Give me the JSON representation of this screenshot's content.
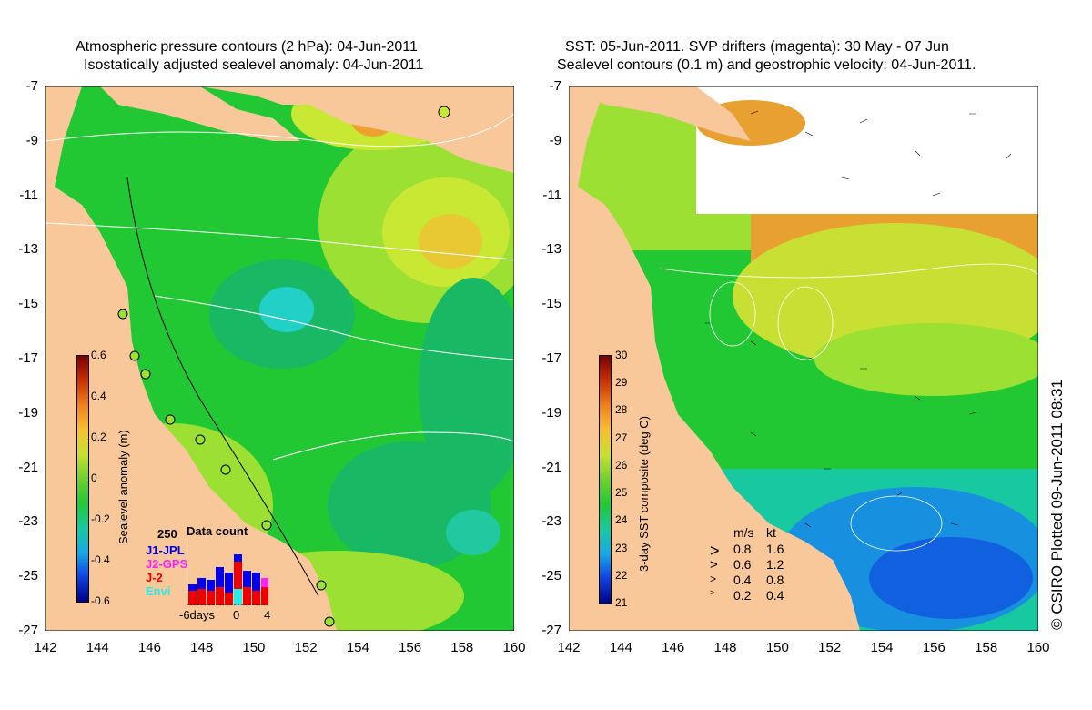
{
  "chart_data": [
    {
      "type": "heatmap",
      "title": "Atmospheric pressure contours (2 hPa): 04-Jun-2011",
      "subtitle": "Isostatically adjusted sealevel anomaly: 04-Jun-2011",
      "x_ticks": [
        "142",
        "144",
        "146",
        "148",
        "150",
        "152",
        "154",
        "156",
        "158",
        "160"
      ],
      "y_ticks": [
        "-7",
        "-9",
        "-11",
        "-13",
        "-15",
        "-17",
        "-19",
        "-21",
        "-23",
        "-25",
        "-27"
      ],
      "xlim": [
        142,
        160
      ],
      "ylim": [
        -27,
        -7
      ],
      "colorbar": {
        "label": "Sealevel anomaly (m)",
        "ticks": [
          "0.6",
          "0.4",
          "0.2",
          "0",
          "-0.2",
          "-0.4",
          "-0.6"
        ],
        "range": [
          -0.6,
          0.6
        ]
      },
      "data_count": {
        "title": "Data count",
        "max_label": "250",
        "x_ticks": [
          "-6days",
          "0",
          "4"
        ],
        "series": [
          {
            "name": "J1-JPL",
            "color": "#0000ee"
          },
          {
            "name": "J2-GPS",
            "color": "#ff22ff"
          },
          {
            "name": "J-2",
            "color": "#ee0000"
          },
          {
            "name": "Envi",
            "color": "#22eeee"
          }
        ]
      }
    },
    {
      "type": "heatmap",
      "title": "SST: 05-Jun-2011. SVP drifters (magenta): 30 May - 07 Jun",
      "subtitle": "Sealevel contours (0.1 m) and geostrophic velocity: 04-Jun-2011.",
      "x_ticks": [
        "142",
        "144",
        "146",
        "148",
        "150",
        "152",
        "154",
        "156",
        "158",
        "160"
      ],
      "y_ticks": [
        "-7",
        "-9",
        "-11",
        "-13",
        "-15",
        "-17",
        "-19",
        "-21",
        "-23",
        "-25",
        "-27"
      ],
      "xlim": [
        142,
        160
      ],
      "ylim": [
        -27,
        -7
      ],
      "colorbar": {
        "label": "3-day SST composite (deg C)",
        "ticks": [
          "30",
          "29",
          "28",
          "27",
          "26",
          "25",
          "24",
          "23",
          "22",
          "21"
        ],
        "range": [
          21,
          30
        ]
      },
      "velocity_legend": {
        "headers": [
          "m/s",
          "kt"
        ],
        "rows": [
          [
            "0.8",
            "1.6"
          ],
          [
            "0.6",
            "1.2"
          ],
          [
            "0.4",
            "0.8"
          ],
          [
            "0.2",
            "0.4"
          ]
        ]
      }
    }
  ],
  "copyright": "© CSIRO Plotted 09-Jun-2011 08:31"
}
